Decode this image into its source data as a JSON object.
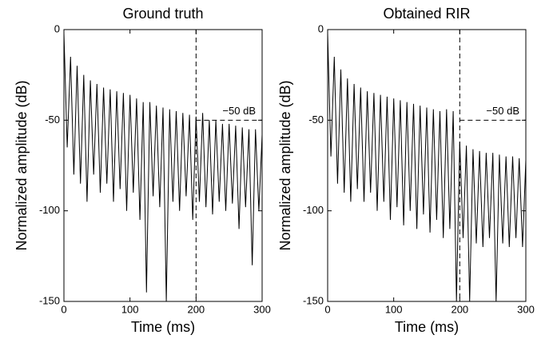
{
  "chart_data": [
    {
      "type": "line",
      "title": "Ground truth",
      "xlabel": "Time (ms)",
      "ylabel": "Normalized amplitude (dB)",
      "x": [
        0,
        5,
        10,
        15,
        20,
        25,
        30,
        35,
        40,
        45,
        50,
        55,
        60,
        65,
        70,
        75,
        80,
        85,
        90,
        95,
        100,
        105,
        110,
        115,
        120,
        125,
        130,
        135,
        140,
        145,
        150,
        155,
        160,
        165,
        170,
        175,
        180,
        185,
        190,
        195,
        200,
        205,
        210,
        215,
        220,
        225,
        230,
        235,
        240,
        245,
        250,
        255,
        260,
        265,
        270,
        275,
        280,
        285,
        290,
        295,
        300
      ],
      "values": [
        -2,
        -65,
        -15,
        -80,
        -20,
        -85,
        -25,
        -95,
        -28,
        -80,
        -30,
        -90,
        -32,
        -85,
        -33,
        -95,
        -34,
        -88,
        -35,
        -100,
        -36,
        -90,
        -38,
        -105,
        -40,
        -145,
        -40,
        -92,
        -42,
        -98,
        -43,
        -150,
        -44,
        -95,
        -45,
        -100,
        -46,
        -92,
        -47,
        -105,
        -48,
        -95,
        -46,
        -98,
        -50,
        -102,
        -50,
        -95,
        -52,
        -100,
        -52,
        -96,
        -53,
        -110,
        -54,
        -98,
        -55,
        -130,
        -55,
        -100,
        -58
      ],
      "color": "#000000",
      "xlim": [
        0,
        300
      ],
      "ylim": [
        -150,
        0
      ],
      "xticks": [
        0,
        100,
        200,
        300
      ],
      "yticks": [
        0,
        -50,
        -100,
        -150
      ],
      "vline": 200,
      "hline": {
        "value": -50,
        "from": 200,
        "label": "−50 dB"
      }
    },
    {
      "type": "line",
      "title": "Obtained RIR",
      "xlabel": "Time (ms)",
      "ylabel": "Normalized amplitude (dB)",
      "x": [
        0,
        5,
        10,
        15,
        20,
        25,
        30,
        35,
        40,
        45,
        50,
        55,
        60,
        65,
        70,
        75,
        80,
        85,
        90,
        95,
        100,
        105,
        110,
        115,
        120,
        125,
        130,
        135,
        140,
        145,
        150,
        155,
        160,
        165,
        170,
        175,
        180,
        185,
        190,
        195,
        200,
        205,
        210,
        215,
        220,
        225,
        230,
        235,
        240,
        245,
        250,
        255,
        260,
        265,
        270,
        275,
        280,
        285,
        290,
        295,
        300
      ],
      "values": [
        -2,
        -70,
        -15,
        -85,
        -22,
        -90,
        -27,
        -95,
        -30,
        -88,
        -32,
        -95,
        -34,
        -90,
        -35,
        -100,
        -36,
        -95,
        -37,
        -105,
        -38,
        -98,
        -39,
        -108,
        -40,
        -100,
        -41,
        -110,
        -42,
        -102,
        -43,
        -112,
        -44,
        -105,
        -45,
        -115,
        -44,
        -110,
        -45,
        -150,
        -62,
        -115,
        -64,
        -150,
        -66,
        -118,
        -67,
        -120,
        -68,
        -115,
        -68,
        -150,
        -69,
        -118,
        -70,
        -120,
        -70,
        -115,
        -71,
        -120,
        -72
      ],
      "color": "#000000",
      "xlim": [
        0,
        300
      ],
      "ylim": [
        -150,
        0
      ],
      "xticks": [
        0,
        100,
        200,
        300
      ],
      "yticks": [
        0,
        -50,
        -100,
        -150
      ],
      "vline": 200,
      "hline": {
        "value": -50,
        "from": 200,
        "label": "−50 dB"
      }
    }
  ]
}
